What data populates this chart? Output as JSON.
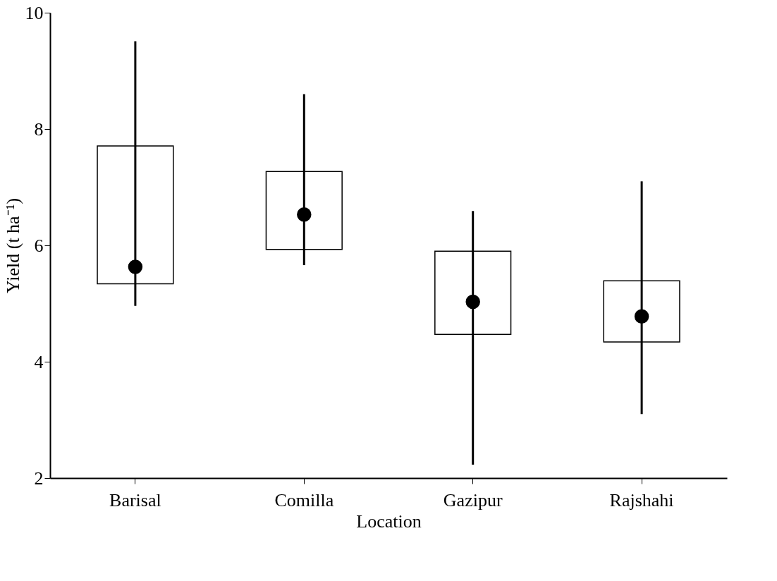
{
  "chart_data": {
    "type": "box",
    "xlabel": "Location",
    "ylabel": "Yield (t ha⁻¹)",
    "categories": [
      "Barisal",
      "Comilla",
      "Gazipur",
      "Rajshahi"
    ],
    "boxes": [
      {
        "low": 4.96,
        "q1": 5.34,
        "median": 5.63,
        "q3": 7.71,
        "high": 9.51
      },
      {
        "low": 5.66,
        "q1": 5.93,
        "median": 6.53,
        "q3": 7.27,
        "high": 8.6
      },
      {
        "low": 2.23,
        "q1": 4.47,
        "median": 5.03,
        "q3": 5.9,
        "high": 6.59
      },
      {
        "low": 3.1,
        "q1": 4.34,
        "median": 4.78,
        "q3": 5.39,
        "high": 7.1
      }
    ],
    "ylim": [
      2,
      10
    ],
    "yticks": [
      2,
      4,
      6,
      8,
      10
    ],
    "grid": false,
    "color": "#000000"
  }
}
